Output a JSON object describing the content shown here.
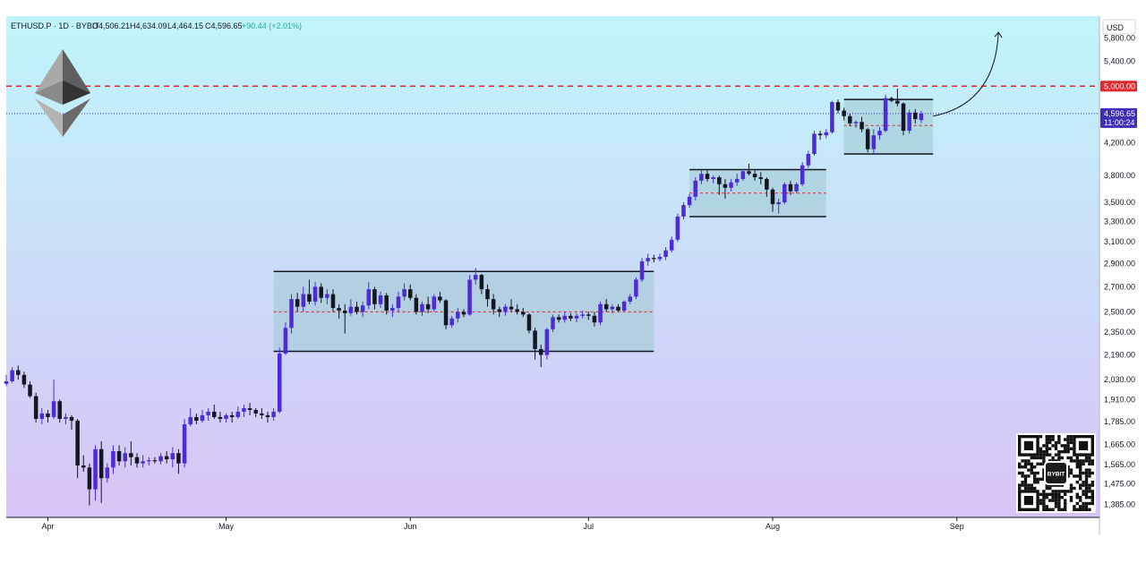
{
  "header": {
    "symbol": "ETHUSD.P · 1D · BYBIT",
    "open": "O4,506.21",
    "high": "H4,634.09",
    "low": "L4,464.15",
    "close": "C4,596.65",
    "change": "+90.44 (+2.01%)"
  },
  "axis": {
    "currency": "USD",
    "price_ticks": [
      "5,800.00",
      "5,400.00",
      "4,200.00",
      "3,800.00",
      "3,500.00",
      "3,300.00",
      "3,100.00",
      "2,900.00",
      "2,700.00",
      "2,500.00",
      "2,350.00",
      "2,190.00",
      "2,030.00",
      "1,910.00",
      "1,785.00",
      "1,665.00",
      "1,565.00",
      "1,475.00",
      "1,385.00"
    ],
    "month_ticks": [
      "Apr",
      "May",
      "Jun",
      "Jul",
      "Aug",
      "Sep"
    ]
  },
  "tags": {
    "resistance_label": "5,000.00",
    "last_price_label": "4,596.65",
    "countdown_label": "11:00:24"
  },
  "qr": {
    "brand": "BYBIT"
  },
  "colors": {
    "up": "#4d2bd9",
    "down": "#131722",
    "resistance": "#e0282e",
    "last_price": "#3d2fb5",
    "box_fill": "#9ec9cf",
    "background_top": "#bff5fa",
    "background_bottom": "#d8c4f6"
  },
  "chart_data": {
    "type": "candlestick",
    "symbol": "ETHUSD.P",
    "interval": "1D",
    "exchange": "BYBIT",
    "ohlc_last": {
      "open": 4506.21,
      "high": 4634.09,
      "low": 4464.15,
      "close": 4596.65,
      "change": 90.44,
      "change_pct": 2.01
    },
    "y_scale": "log",
    "y_range": [
      1330,
      6200
    ],
    "x_range": [
      "2025-03-25",
      "2025-09-25"
    ],
    "series": [
      {
        "start_date": "2025-03-25",
        "candles": [
          [
            2005,
            2060,
            1990,
            2020
          ],
          [
            2020,
            2110,
            2010,
            2090
          ],
          [
            2090,
            2120,
            2030,
            2060
          ],
          [
            2060,
            2080,
            1980,
            2000
          ],
          [
            2000,
            2020,
            1920,
            1930
          ],
          [
            1930,
            1950,
            1780,
            1800
          ],
          [
            1800,
            1860,
            1770,
            1830
          ],
          [
            1830,
            1850,
            1780,
            1810
          ],
          [
            1810,
            2030,
            1800,
            1900
          ],
          [
            1900,
            1910,
            1780,
            1800
          ],
          [
            1800,
            1830,
            1770,
            1810
          ],
          [
            1810,
            1820,
            1740,
            1790
          ],
          [
            1790,
            1800,
            1500,
            1560
          ],
          [
            1560,
            1610,
            1530,
            1550
          ],
          [
            1550,
            1570,
            1380,
            1450
          ],
          [
            1450,
            1660,
            1400,
            1640
          ],
          [
            1640,
            1680,
            1390,
            1500
          ],
          [
            1500,
            1570,
            1480,
            1550
          ],
          [
            1550,
            1660,
            1520,
            1630
          ],
          [
            1630,
            1660,
            1560,
            1580
          ],
          [
            1580,
            1650,
            1550,
            1620
          ],
          [
            1620,
            1680,
            1560,
            1600
          ],
          [
            1600,
            1620,
            1550,
            1570
          ],
          [
            1570,
            1610,
            1550,
            1580
          ],
          [
            1580,
            1600,
            1560,
            1585
          ],
          [
            1585,
            1600,
            1570,
            1580
          ],
          [
            1580,
            1620,
            1565,
            1605
          ],
          [
            1605,
            1630,
            1570,
            1590
          ],
          [
            1590,
            1650,
            1550,
            1620
          ],
          [
            1620,
            1640,
            1520,
            1570
          ],
          [
            1570,
            1800,
            1550,
            1770
          ],
          [
            1770,
            1860,
            1760,
            1810
          ],
          [
            1810,
            1830,
            1770,
            1790
          ],
          [
            1790,
            1850,
            1780,
            1820
          ],
          [
            1820,
            1860,
            1790,
            1840
          ],
          [
            1840,
            1880,
            1800,
            1810
          ],
          [
            1810,
            1840,
            1780,
            1800
          ],
          [
            1800,
            1830,
            1780,
            1820
          ],
          [
            1820,
            1840,
            1780,
            1810
          ],
          [
            1810,
            1870,
            1800,
            1840
          ],
          [
            1840,
            1880,
            1810,
            1860
          ],
          [
            1860,
            1890,
            1820,
            1850
          ],
          [
            1850,
            1860,
            1810,
            1830
          ],
          [
            1830,
            1860,
            1800,
            1820
          ],
          [
            1820,
            1840,
            1780,
            1810
          ],
          [
            1810,
            1860,
            1790,
            1840
          ],
          [
            1840,
            2240,
            1830,
            2200
          ],
          [
            2200,
            2420,
            2190,
            2380
          ],
          [
            2380,
            2640,
            2340,
            2600
          ],
          [
            2600,
            2650,
            2500,
            2540
          ],
          [
            2540,
            2700,
            2500,
            2640
          ],
          [
            2640,
            2760,
            2560,
            2580
          ],
          [
            2580,
            2740,
            2550,
            2700
          ],
          [
            2700,
            2730,
            2570,
            2610
          ],
          [
            2610,
            2680,
            2560,
            2640
          ],
          [
            2640,
            2680,
            2500,
            2530
          ],
          [
            2530,
            2560,
            2450,
            2510
          ],
          [
            2510,
            2560,
            2340,
            2490
          ],
          [
            2490,
            2600,
            2470,
            2540
          ],
          [
            2540,
            2580,
            2480,
            2500
          ],
          [
            2500,
            2580,
            2460,
            2550
          ],
          [
            2550,
            2740,
            2520,
            2680
          ],
          [
            2680,
            2700,
            2520,
            2560
          ],
          [
            2560,
            2660,
            2530,
            2630
          ],
          [
            2630,
            2650,
            2480,
            2510
          ],
          [
            2510,
            2560,
            2460,
            2530
          ],
          [
            2530,
            2660,
            2500,
            2620
          ],
          [
            2620,
            2730,
            2590,
            2680
          ],
          [
            2680,
            2720,
            2590,
            2610
          ],
          [
            2610,
            2640,
            2480,
            2500
          ],
          [
            2500,
            2580,
            2470,
            2560
          ],
          [
            2560,
            2620,
            2490,
            2520
          ],
          [
            2520,
            2640,
            2500,
            2620
          ],
          [
            2620,
            2660,
            2570,
            2590
          ],
          [
            2590,
            2600,
            2370,
            2400
          ],
          [
            2400,
            2470,
            2380,
            2450
          ],
          [
            2450,
            2530,
            2420,
            2500
          ],
          [
            2500,
            2520,
            2460,
            2480
          ],
          [
            2480,
            2800,
            2470,
            2760
          ],
          [
            2760,
            2860,
            2720,
            2800
          ],
          [
            2800,
            2810,
            2640,
            2680
          ],
          [
            2680,
            2720,
            2540,
            2600
          ],
          [
            2600,
            2640,
            2480,
            2520
          ],
          [
            2520,
            2540,
            2460,
            2500
          ],
          [
            2500,
            2560,
            2470,
            2540
          ],
          [
            2540,
            2600,
            2500,
            2520
          ],
          [
            2520,
            2560,
            2480,
            2500
          ],
          [
            2500,
            2530,
            2460,
            2480
          ],
          [
            2480,
            2490,
            2340,
            2360
          ],
          [
            2360,
            2380,
            2160,
            2230
          ],
          [
            2230,
            2260,
            2110,
            2190
          ],
          [
            2190,
            2380,
            2160,
            2370
          ],
          [
            2370,
            2480,
            2350,
            2460
          ],
          [
            2460,
            2480,
            2420,
            2440
          ],
          [
            2440,
            2500,
            2420,
            2470
          ],
          [
            2470,
            2490,
            2430,
            2450
          ],
          [
            2450,
            2490,
            2420,
            2470
          ],
          [
            2470,
            2510,
            2450,
            2480
          ],
          [
            2480,
            2500,
            2440,
            2470
          ],
          [
            2470,
            2500,
            2390,
            2420
          ],
          [
            2420,
            2580,
            2400,
            2560
          ],
          [
            2560,
            2600,
            2500,
            2520
          ],
          [
            2520,
            2560,
            2490,
            2540
          ],
          [
            2540,
            2560,
            2500,
            2510
          ],
          [
            2510,
            2590,
            2500,
            2580
          ],
          [
            2580,
            2640,
            2560,
            2620
          ],
          [
            2620,
            2780,
            2600,
            2760
          ],
          [
            2760,
            2950,
            2740,
            2920
          ],
          [
            2920,
            2990,
            2880,
            2950
          ],
          [
            2950,
            2980,
            2910,
            2940
          ],
          [
            2940,
            2990,
            2920,
            2960
          ],
          [
            2960,
            3050,
            2930,
            3020
          ],
          [
            3020,
            3150,
            3000,
            3120
          ],
          [
            3120,
            3380,
            3100,
            3350
          ],
          [
            3350,
            3500,
            3320,
            3470
          ],
          [
            3470,
            3590,
            3440,
            3560
          ],
          [
            3560,
            3780,
            3520,
            3740
          ],
          [
            3740,
            3860,
            3700,
            3820
          ],
          [
            3820,
            3860,
            3730,
            3760
          ],
          [
            3760,
            3800,
            3710,
            3780
          ],
          [
            3780,
            3800,
            3580,
            3700
          ],
          [
            3700,
            3760,
            3540,
            3660
          ],
          [
            3660,
            3760,
            3620,
            3720
          ],
          [
            3720,
            3820,
            3680,
            3760
          ],
          [
            3760,
            3880,
            3740,
            3850
          ],
          [
            3850,
            3940,
            3800,
            3820
          ],
          [
            3820,
            3860,
            3740,
            3780
          ],
          [
            3780,
            3840,
            3700,
            3760
          ],
          [
            3760,
            3780,
            3560,
            3640
          ],
          [
            3640,
            3660,
            3400,
            3480
          ],
          [
            3480,
            3540,
            3380,
            3500
          ],
          [
            3500,
            3720,
            3480,
            3700
          ],
          [
            3700,
            3740,
            3580,
            3620
          ],
          [
            3620,
            3720,
            3600,
            3700
          ],
          [
            3700,
            3960,
            3680,
            3920
          ],
          [
            3920,
            4100,
            3890,
            4060
          ],
          [
            4060,
            4360,
            4040,
            4320
          ],
          [
            4320,
            4360,
            4240,
            4300
          ],
          [
            4300,
            4380,
            4260,
            4340
          ],
          [
            4340,
            4780,
            4320,
            4760
          ],
          [
            4760,
            4800,
            4600,
            4640
          ],
          [
            4640,
            4680,
            4500,
            4560
          ],
          [
            4560,
            4600,
            4420,
            4460
          ],
          [
            4460,
            4500,
            4400,
            4480
          ],
          [
            4480,
            4550,
            4340,
            4380
          ],
          [
            4380,
            4400,
            4080,
            4120
          ],
          [
            4120,
            4380,
            4050,
            4300
          ],
          [
            4300,
            4410,
            4240,
            4360
          ],
          [
            4360,
            4870,
            4340,
            4820
          ],
          [
            4820,
            4840,
            4760,
            4780
          ],
          [
            4780,
            4960,
            4700,
            4740
          ],
          [
            4740,
            4760,
            4300,
            4360
          ],
          [
            4360,
            4650,
            4320,
            4610
          ],
          [
            4610,
            4660,
            4460,
            4520
          ],
          [
            4506.21,
            4634.09,
            4464.15,
            4596.65
          ]
        ]
      }
    ],
    "levels": [
      {
        "name": "resistance",
        "price": 5000
      },
      {
        "name": "last_price",
        "price": 4596.65
      }
    ],
    "ranges": [
      {
        "from": "2025-05-09",
        "to": "2025-07-12",
        "high": 2830,
        "low": 2215,
        "mid": 2500
      },
      {
        "from": "2025-07-18",
        "to": "2025-08-10",
        "high": 3870,
        "low": 3350,
        "mid": 3600
      },
      {
        "from": "2025-08-13",
        "to": "2025-08-28",
        "high": 4800,
        "low": 4060,
        "mid": 4430
      }
    ],
    "projection": {
      "from_date": "2025-08-28",
      "from_price": 4560,
      "to_date": "2025-09-08",
      "to_price": 5900
    },
    "month_ticks": [
      {
        "label": "Apr",
        "date": "2025-04-01"
      },
      {
        "label": "May",
        "date": "2025-05-01"
      },
      {
        "label": "Jun",
        "date": "2025-06-01"
      },
      {
        "label": "Jul",
        "date": "2025-07-01"
      },
      {
        "label": "Aug",
        "date": "2025-08-01"
      },
      {
        "label": "Sep",
        "date": "2025-09-01"
      }
    ],
    "price_ticks": [
      5800,
      5400,
      4200,
      3800,
      3500,
      3300,
      3100,
      2900,
      2700,
      2500,
      2350,
      2190,
      2030,
      1910,
      1785,
      1665,
      1565,
      1475,
      1385
    ],
    "grid": false,
    "legend": "none"
  }
}
